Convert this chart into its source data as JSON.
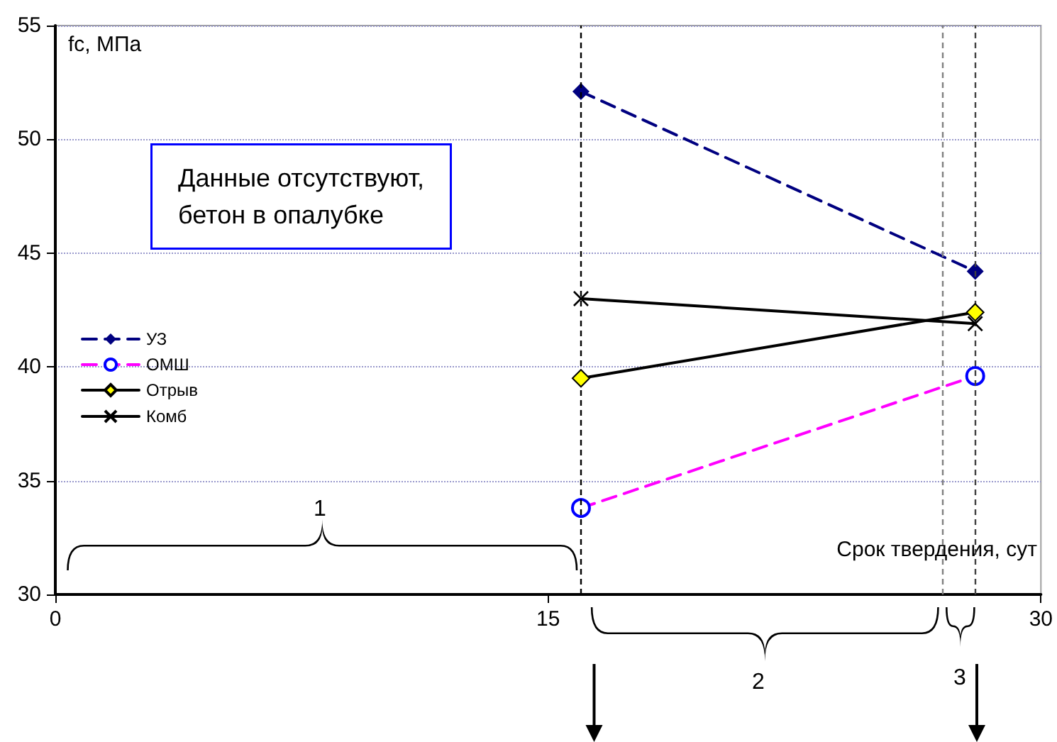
{
  "chart_data": {
    "type": "line",
    "xlabel": "Срок твердения, сут",
    "ylabel": "fc, МПа",
    "annotations": [
      "Данные отсутствуют,\nбетон в опалубке",
      "1",
      "2",
      "3"
    ],
    "x": [
      16,
      28
    ],
    "xlim": [
      0,
      30
    ],
    "xticks": [
      0,
      15,
      30
    ],
    "ylim": [
      30,
      55
    ],
    "yticks": [
      30,
      35,
      40,
      45,
      50,
      55
    ],
    "series": [
      {
        "name": "УЗ",
        "color": "#000080",
        "values": [
          52.1,
          44.2
        ],
        "marker": "diamond",
        "line_style": "dashed"
      },
      {
        "name": "ОМШ",
        "color": "#ff00ff",
        "colors": [
          "#0000ff",
          "#0000ff"
        ],
        "values": [
          33.8,
          39.6
        ],
        "marker": "circle",
        "line_style": "dashed"
      },
      {
        "name": "Отрыв",
        "color": "#000000",
        "colors": [
          "#ffff00",
          "#ffff00"
        ],
        "values": [
          39.5,
          42.4
        ],
        "marker": "diamond",
        "line_style": "solid"
      },
      {
        "name": "Комб",
        "color": "#000000",
        "values": [
          43.0,
          41.9
        ],
        "marker": "cross",
        "line_style": "solid"
      }
    ],
    "ref_lines": [
      {
        "axis": "x",
        "value": 16,
        "color": "#000000",
        "line_style": "dashed"
      },
      {
        "axis": "x",
        "value": 27,
        "color": "#808080",
        "line_style": "dashed"
      },
      {
        "axis": "x",
        "value": 28,
        "color": "#404040",
        "line_style": "dashed"
      }
    ],
    "grid": "y",
    "legend": "left"
  }
}
